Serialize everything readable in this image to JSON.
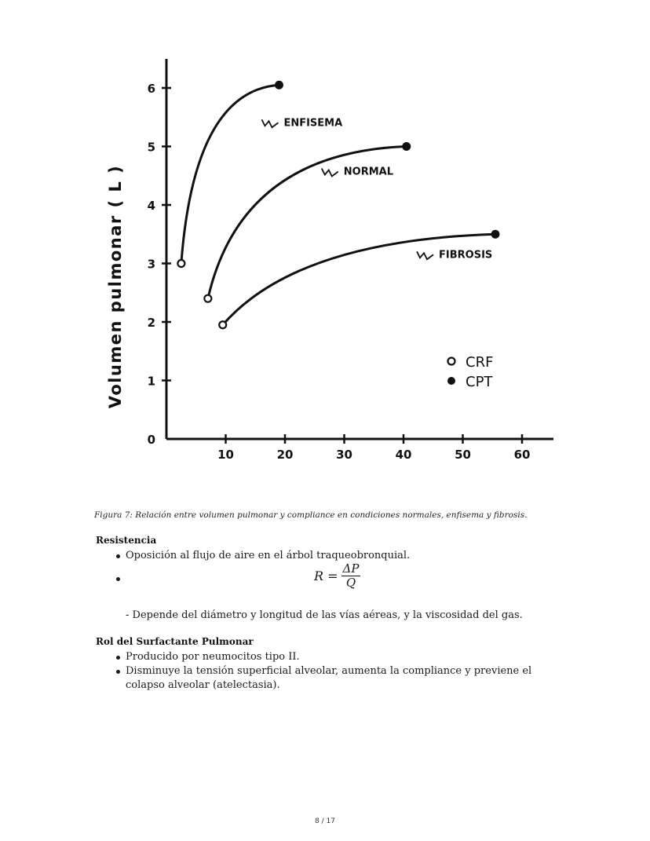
{
  "figure": {
    "ylabel": "Volumen pulmonar  ( L )",
    "legend": {
      "crf": "CRF",
      "cpt": "CPT"
    },
    "chart_data": {
      "type": "line",
      "xlabel": "",
      "ylabel": "Volumen pulmonar (L)",
      "xlim": [
        0,
        65
      ],
      "ylim": [
        0,
        6.5
      ],
      "xticks": [
        "10",
        "20",
        "30",
        "40",
        "50",
        "60"
      ],
      "yticks": [
        "0",
        "1",
        "2",
        "3",
        "4",
        "5",
        "6"
      ],
      "grid": false,
      "legend_position": "bottom-right",
      "series": [
        {
          "name": "ENFISEMA",
          "start": [
            2.5,
            3.0
          ],
          "end": [
            19,
            6.05
          ]
        },
        {
          "name": "NORMAL",
          "start": [
            7,
            2.4
          ],
          "end": [
            40.5,
            5.0
          ]
        },
        {
          "name": "FIBROSIS",
          "start": [
            9.5,
            1.95
          ],
          "end": [
            55.5,
            3.5
          ]
        }
      ]
    }
  },
  "caption": "Figura 7: Relación entre volumen pulmonar y compliance en condiciones normales, enfisema y fibrosis.",
  "resistencia": {
    "title": "Resistencia",
    "item1": "Oposición al flujo de aire en el árbol traqueobronquial.",
    "formula_lhs": "R =",
    "formula_num": "ΔP",
    "formula_den": "Q",
    "note": "- Depende del diámetro y longitud de las vías aéreas, y la viscosidad del gas."
  },
  "surfactante": {
    "title": "Rol del Surfactante Pulmonar",
    "items": [
      "Producido por neumocitos tipo II.",
      "Disminuye la tensión superficial alveolar, aumenta la compliance y previene el",
      "colapso alveolar (atelectasia)."
    ]
  },
  "footer": {
    "page": "8 / 17"
  }
}
